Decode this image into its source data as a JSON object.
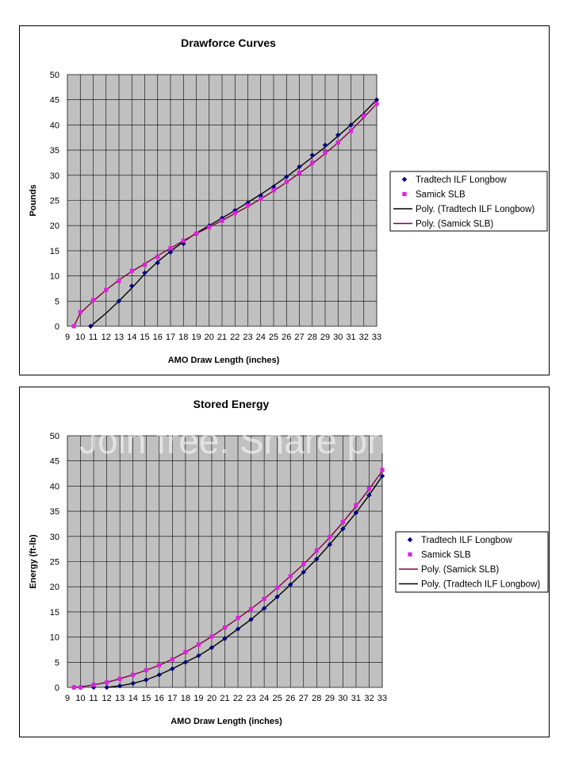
{
  "chart_data": [
    {
      "type": "line",
      "title": "Drawforce Curves",
      "xlabel": "AMO Draw Length (inches)",
      "ylabel": "Pounds",
      "xlim": [
        9,
        33
      ],
      "ylim": [
        0,
        50
      ],
      "x_ticks": [
        "9",
        "10",
        "11",
        "12",
        "13",
        "14",
        "15",
        "16",
        "17",
        "18",
        "19",
        "20",
        "21",
        "22",
        "23",
        "24",
        "25",
        "26",
        "27",
        "28",
        "29",
        "30",
        "31",
        "32",
        "33"
      ],
      "y_ticks": [
        "0",
        "5",
        "10",
        "15",
        "20",
        "25",
        "30",
        "35",
        "40",
        "45",
        "50"
      ],
      "grid": true,
      "legend_position": "right",
      "legend": [
        "Tradtech ILF Longbow",
        "Samick SLB",
        "Poly. (Tradtech ILF Longbow)",
        "Poly. (Samick SLB)"
      ],
      "series": [
        {
          "name": "Tradtech ILF Longbow",
          "kind": "points",
          "marker": "diamond",
          "color": "#000080",
          "x": [
            10.8,
            13,
            14,
            15,
            16,
            17,
            18,
            19,
            20,
            21,
            22,
            23,
            24,
            25,
            26,
            27,
            28,
            29,
            30,
            31,
            32,
            33
          ],
          "y": [
            0,
            5,
            8,
            10.6,
            12.6,
            14.7,
            16.4,
            18.4,
            20,
            21.5,
            23,
            24.5,
            26,
            27.7,
            29.7,
            31.7,
            34,
            36,
            38,
            40,
            42,
            45
          ]
        },
        {
          "name": "Samick SLB",
          "kind": "points",
          "marker": "square",
          "color": "#e020e0",
          "x": [
            9.5,
            10,
            11,
            12,
            13,
            14,
            15,
            16,
            17,
            18,
            19,
            20,
            21,
            22,
            23,
            24,
            25,
            26,
            27,
            28,
            29,
            30,
            31,
            32,
            33
          ],
          "y": [
            0,
            2.8,
            5.2,
            7.2,
            9,
            11,
            12.2,
            13.8,
            15.5,
            17,
            18.4,
            19.7,
            21,
            22.5,
            24,
            25.3,
            27,
            28.7,
            30.5,
            32.5,
            34.5,
            36.5,
            38.8,
            41.8,
            44.2
          ]
        },
        {
          "name": "Poly. (Tradtech ILF Longbow)",
          "kind": "trend",
          "color": "#000000",
          "x": [
            10.8,
            12,
            13,
            14,
            15,
            16,
            17,
            18,
            19,
            20,
            21,
            22,
            23,
            24,
            25,
            26,
            27,
            28,
            29,
            30,
            31,
            32,
            33
          ],
          "y": [
            0,
            2.6,
            5,
            7.6,
            10.4,
            12.8,
            14.9,
            16.8,
            18.5,
            20,
            21.5,
            23,
            24.6,
            26.2,
            27.9,
            29.7,
            31.6,
            33.6,
            35.6,
            37.8,
            40,
            42.4,
            45
          ]
        },
        {
          "name": "Poly. (Samick SLB)",
          "kind": "trend",
          "color": "#800040",
          "x": [
            9.5,
            10,
            11,
            12,
            13,
            14,
            15,
            16,
            17,
            18,
            19,
            20,
            21,
            22,
            23,
            24,
            25,
            26,
            27,
            28,
            29,
            30,
            31,
            32,
            33
          ],
          "y": [
            0,
            2.6,
            5,
            7.2,
            9.2,
            10.9,
            12.4,
            14,
            15.5,
            17,
            18.4,
            19.7,
            21,
            22.4,
            23.8,
            25.3,
            26.9,
            28.6,
            30.4,
            32.3,
            34.3,
            36.5,
            38.9,
            41.5,
            44.2
          ]
        }
      ]
    },
    {
      "type": "line",
      "title": "Stored Energy",
      "xlabel": "AMO Draw Length (inches)",
      "ylabel": "Energy (ft-lb)",
      "xlim": [
        9,
        33
      ],
      "ylim": [
        0,
        50
      ],
      "x_ticks": [
        "9",
        "10",
        "11",
        "12",
        "13",
        "14",
        "15",
        "16",
        "17",
        "18",
        "19",
        "20",
        "21",
        "22",
        "23",
        "24",
        "25",
        "26",
        "27",
        "28",
        "29",
        "30",
        "31",
        "32",
        "33"
      ],
      "y_ticks": [
        "0",
        "5",
        "10",
        "15",
        "20",
        "25",
        "30",
        "35",
        "40",
        "45",
        "50"
      ],
      "grid": true,
      "legend_position": "right",
      "legend": [
        "Tradtech ILF Longbow",
        "Samick SLB",
        "Poly. (Samick SLB)",
        "Poly. (Tradtech ILF Longbow)"
      ],
      "series": [
        {
          "name": "Tradtech ILF Longbow",
          "kind": "points",
          "marker": "diamond",
          "color": "#000080",
          "x": [
            9.5,
            10,
            11,
            12,
            13,
            14,
            15,
            16,
            17,
            18,
            19,
            20,
            21,
            22,
            23,
            24,
            25,
            26,
            27,
            28,
            29,
            30,
            31,
            32,
            33
          ],
          "y": [
            0,
            0,
            0,
            0,
            0.3,
            0.8,
            1.5,
            2.5,
            3.7,
            5,
            6.3,
            7.9,
            9.7,
            11.6,
            13.5,
            15.7,
            18,
            20.4,
            22.9,
            25.5,
            28.4,
            31.5,
            34.7,
            38.2,
            42
          ]
        },
        {
          "name": "Samick SLB",
          "kind": "points",
          "marker": "square",
          "color": "#e020e0",
          "x": [
            9.5,
            10,
            11,
            12,
            13,
            14,
            15,
            16,
            17,
            18,
            19,
            20,
            21,
            22,
            23,
            24,
            25,
            26,
            27,
            28,
            29,
            30,
            31,
            32,
            33
          ],
          "y": [
            0,
            0,
            0.5,
            1,
            1.7,
            2.5,
            3.4,
            4.4,
            5.6,
            7,
            8.5,
            10.1,
            11.9,
            13.8,
            15.6,
            17.6,
            19.8,
            22.1,
            24.5,
            27.2,
            29.9,
            32.9,
            36.2,
            39.5,
            43.2
          ]
        },
        {
          "name": "Poly. (Samick SLB)",
          "kind": "trend",
          "color": "#800040",
          "x": [
            9.5,
            10,
            11,
            12,
            13,
            14,
            15,
            16,
            17,
            18,
            19,
            20,
            21,
            22,
            23,
            24,
            25,
            26,
            27,
            28,
            29,
            30,
            31,
            32,
            33
          ],
          "y": [
            0,
            0.1,
            0.5,
            1,
            1.7,
            2.5,
            3.4,
            4.4,
            5.6,
            7,
            8.5,
            10.1,
            11.9,
            13.7,
            15.6,
            17.6,
            19.8,
            22.1,
            24.5,
            27.1,
            29.8,
            32.8,
            36,
            39.4,
            43
          ]
        },
        {
          "name": "Poly. (Tradtech ILF Longbow)",
          "kind": "trend",
          "color": "#000000",
          "x": [
            12,
            13,
            14,
            15,
            16,
            17,
            18,
            19,
            20,
            21,
            22,
            23,
            24,
            25,
            26,
            27,
            28,
            29,
            30,
            31,
            32,
            33
          ],
          "y": [
            0,
            0.3,
            0.8,
            1.5,
            2.5,
            3.7,
            5,
            6.3,
            7.9,
            9.7,
            11.6,
            13.5,
            15.7,
            18,
            20.4,
            22.9,
            25.5,
            28.4,
            31.5,
            34.7,
            38.2,
            42
          ]
        }
      ]
    }
  ],
  "watermark": "Join free. Share privately."
}
